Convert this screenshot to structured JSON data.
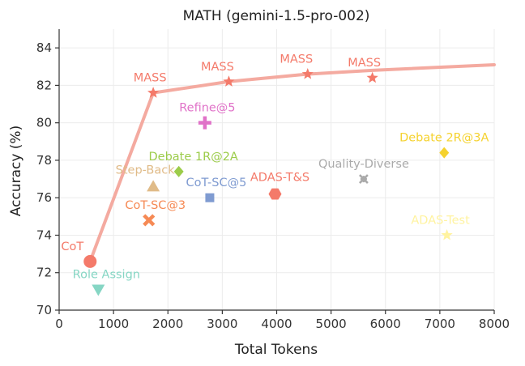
{
  "chart_data": {
    "type": "scatter",
    "title": "MATH (gemini-1.5-pro-002)",
    "xlabel": "Total Tokens",
    "ylabel": "Accuracy (%)",
    "xlim": [
      0,
      8000
    ],
    "ylim": [
      70,
      85
    ],
    "xticks": [
      0,
      1000,
      2000,
      3000,
      4000,
      5000,
      6000,
      7000,
      8000
    ],
    "yticks": [
      70,
      72,
      74,
      76,
      78,
      80,
      82,
      84
    ],
    "grid": true,
    "frontier": {
      "color": "#f4aaa0",
      "points": [
        [
          570,
          72.6
        ],
        [
          1730,
          81.6
        ],
        [
          3120,
          82.2
        ],
        [
          4570,
          82.6
        ],
        [
          5760,
          82.8
        ],
        [
          8000,
          83.1
        ]
      ]
    },
    "points": [
      {
        "label": "MASS",
        "x": 1730,
        "y": 81.6,
        "marker": "star",
        "color": "#f47a6a",
        "label_dx": -4,
        "label_dy": -14
      },
      {
        "label": "MASS",
        "x": 3120,
        "y": 82.2,
        "marker": "star",
        "color": "#f47a6a",
        "label_dx": -14,
        "label_dy": -14
      },
      {
        "label": "MASS",
        "x": 4570,
        "y": 82.6,
        "marker": "star",
        "color": "#f47a6a",
        "label_dx": -14,
        "label_dy": -14
      },
      {
        "label": "MASS",
        "x": 5760,
        "y": 82.4,
        "marker": "star",
        "color": "#f47a6a",
        "label_dx": -10,
        "label_dy": -14
      },
      {
        "label": "Refine@5",
        "x": 2680,
        "y": 80.0,
        "marker": "plus",
        "color": "#e072c8",
        "label_dx": 3,
        "label_dy": -14
      },
      {
        "label": "Debate 2R@3A",
        "x": 7080,
        "y": 78.4,
        "marker": "diamond",
        "color": "#f5d22e",
        "label_dx": 0,
        "label_dy": -14
      },
      {
        "label": "Debate 1R@2A",
        "x": 2200,
        "y": 77.4,
        "marker": "diamond",
        "color": "#9ccc4a",
        "label_dx": 18,
        "label_dy": -14
      },
      {
        "label": "Step-Back",
        "x": 1730,
        "y": 76.6,
        "marker": "triangle-up",
        "color": "#e0bb88",
        "label_dx": -10,
        "label_dy": -16
      },
      {
        "label": "Quality-Diverse",
        "x": 5600,
        "y": 77.0,
        "marker": "x-thin",
        "color": "#aaaaaa",
        "label_dx": 0,
        "label_dy": -14
      },
      {
        "label": "CoT-SC@5",
        "x": 2770,
        "y": 76.0,
        "marker": "square",
        "color": "#7f9bd1",
        "label_dx": 8,
        "label_dy": -14
      },
      {
        "label": "ADAS-T&S",
        "x": 3970,
        "y": 76.2,
        "marker": "hexagon",
        "color": "#f47a6a",
        "label_dx": 6,
        "label_dy": -16
      },
      {
        "label": "CoT-SC@3",
        "x": 1650,
        "y": 74.8,
        "marker": "x-bold",
        "color": "#f68a55",
        "label_dx": 8,
        "label_dy": -14
      },
      {
        "label": "ADAS-Test",
        "x": 7130,
        "y": 74.0,
        "marker": "star",
        "color": "#fff3a0",
        "label_dx": -8,
        "label_dy": -14
      },
      {
        "label": "CoT",
        "x": 570,
        "y": 72.6,
        "marker": "circle",
        "color": "#f47a6a",
        "label_dx": -22,
        "label_dy": -14
      },
      {
        "label": "Role Assign",
        "x": 720,
        "y": 71.1,
        "marker": "triangle-down",
        "color": "#86d6c4",
        "label_dx": 10,
        "label_dy": -14
      }
    ]
  }
}
